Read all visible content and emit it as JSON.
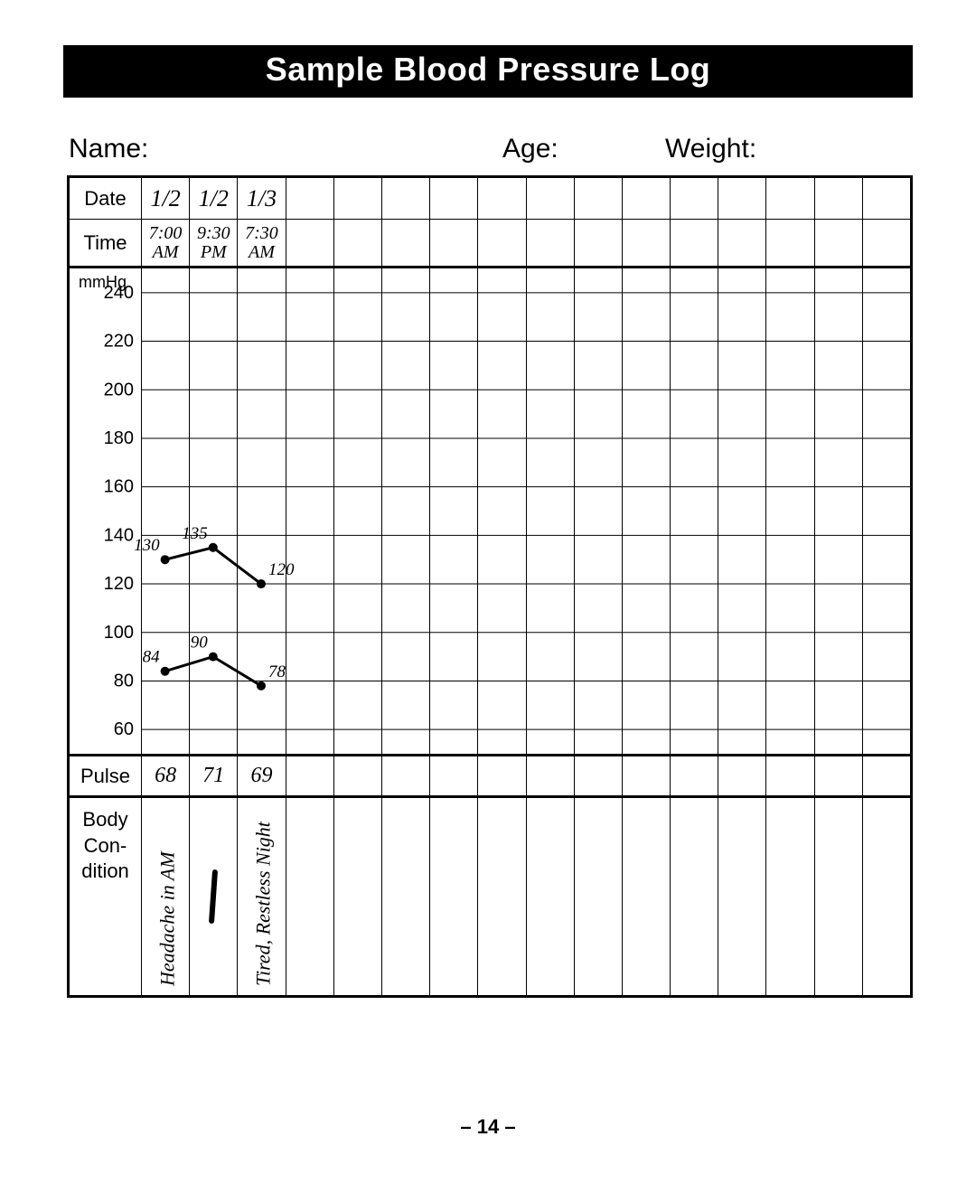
{
  "title": "Sample Blood Pressure Log",
  "info": {
    "name_label": "Name:",
    "age_label": "Age:",
    "weight_label": "Weight:"
  },
  "row_labels": {
    "date": "Date",
    "time": "Time",
    "mmhg": "mmHg",
    "pulse": "Pulse",
    "body1": "Body",
    "body2": "Con-",
    "body3": "dition"
  },
  "columns_count": 16,
  "dates": [
    "1/2",
    "1/2",
    "1/3",
    "",
    "",
    "",
    "",
    "",
    "",
    "",
    "",
    "",
    "",
    "",
    "",
    ""
  ],
  "times": [
    "7:00\nAM",
    "9:30\nPM",
    "7:30\nAM",
    "",
    "",
    "",
    "",
    "",
    "",
    "",
    "",
    "",
    "",
    "",
    "",
    ""
  ],
  "pulses": [
    "68",
    "71",
    "69",
    "",
    "",
    "",
    "",
    "",
    "",
    "",
    "",
    "",
    "",
    "",
    "",
    ""
  ],
  "body_conditions": [
    "Headache in AM",
    "—",
    "Tired, Restless Night",
    "",
    "",
    "",
    "",
    "",
    "",
    "",
    "",
    "",
    "",
    "",
    "",
    ""
  ],
  "chart": {
    "type": "line",
    "y_label_top": "mmHg",
    "ylim": [
      50,
      250
    ],
    "yticks": [
      240,
      220,
      200,
      180,
      160,
      140,
      120,
      100,
      80,
      60
    ],
    "grid_color": "#000000",
    "line_color": "#000000",
    "point_color": "#000000",
    "point_radius": 5,
    "line_width": 3,
    "label_font": "italic 18px cursive",
    "systolic": {
      "values": [
        130,
        135,
        120
      ],
      "labels": [
        "130",
        "135",
        "120"
      ]
    },
    "diastolic": {
      "values": [
        84,
        90,
        78
      ],
      "labels": [
        "84",
        "90",
        "78"
      ]
    }
  },
  "page_number": "– 14 –"
}
